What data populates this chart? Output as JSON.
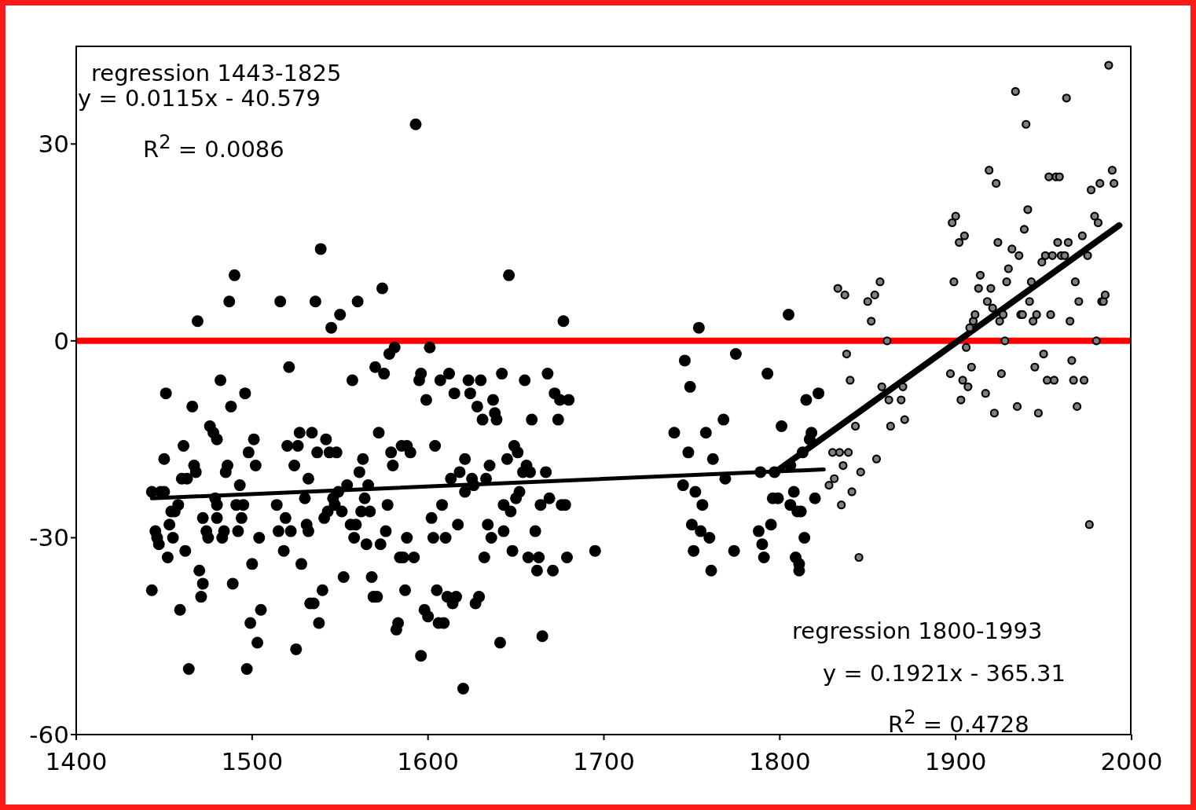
{
  "chart_data": {
    "type": "scatter",
    "marker": "circle",
    "xlim": [
      1400,
      2000
    ],
    "xticks": [
      1400,
      1500,
      1600,
      1700,
      1800,
      1900,
      2000
    ],
    "ylim": [
      -60,
      45
    ],
    "yticks": [
      -60,
      -30,
      0,
      30
    ],
    "ref_lines": [
      {
        "axis": "y",
        "value": 0,
        "color": "#ff0000"
      }
    ],
    "annotations": [
      "regression 1443-1825",
      "y = 0.0115x - 40.579",
      "R$^{2}$ = 0.0086",
      "regression 1800-1993",
      "y = 0.1921x - 365.31",
      "R$^{2}$ = 0.4728"
    ],
    "series": [
      {
        "color": "#000000",
        "x": [
          1443,
          1443,
          1445,
          1446,
          1447,
          1448,
          1450,
          1450,
          1451,
          1452,
          1453,
          1454,
          1455,
          1456,
          1458,
          1459,
          1460,
          1461,
          1462,
          1463,
          1464,
          1466,
          1467,
          1468,
          1469,
          1470,
          1471,
          1472,
          1472,
          1474,
          1475,
          1476,
          1478,
          1479,
          1480,
          1480,
          1480,
          1482,
          1483,
          1484,
          1485,
          1486,
          1487,
          1488,
          1489,
          1490,
          1491,
          1492,
          1493,
          1494,
          1495,
          1496,
          1497,
          1498,
          1499,
          1500,
          1501,
          1502,
          1503,
          1504,
          1505,
          1514,
          1515,
          1516,
          1518,
          1519,
          1520,
          1521,
          1522,
          1524,
          1525,
          1526,
          1527,
          1528,
          1530,
          1531,
          1532,
          1532,
          1533,
          1534,
          1535,
          1536,
          1537,
          1538,
          1539,
          1540,
          1541,
          1542,
          1543,
          1544,
          1545,
          1546,
          1547,
          1548,
          1549,
          1550,
          1551,
          1552,
          1554,
          1556,
          1557,
          1558,
          1559,
          1560,
          1561,
          1562,
          1563,
          1564,
          1565,
          1566,
          1567,
          1568,
          1569,
          1570,
          1571,
          1572,
          1573,
          1574,
          1575,
          1576,
          1577,
          1578,
          1579,
          1580,
          1581,
          1582,
          1583,
          1584,
          1585,
          1586,
          1587,
          1588,
          1588,
          1590,
          1592,
          1593,
          1595,
          1596,
          1596,
          1598,
          1599,
          1600,
          1601,
          1602,
          1603,
          1604,
          1605,
          1606,
          1607,
          1608,
          1609,
          1610,
          1611,
          1612,
          1613,
          1614,
          1615,
          1616,
          1617,
          1618,
          1620,
          1621,
          1621,
          1623,
          1624,
          1625,
          1626,
          1627,
          1628,
          1629,
          1630,
          1631,
          1632,
          1633,
          1634,
          1635,
          1636,
          1637,
          1638,
          1639,
          1641,
          1642,
          1643,
          1643,
          1645,
          1646,
          1647,
          1648,
          1649,
          1650,
          1651,
          1652,
          1654,
          1655,
          1656,
          1657,
          1658,
          1659,
          1661,
          1662,
          1663,
          1664,
          1665,
          1667,
          1668,
          1669,
          1671,
          1672,
          1674,
          1675,
          1676,
          1677,
          1678,
          1679,
          1680,
          1695,
          1740,
          1745,
          1746,
          1748,
          1749,
          1750,
          1751,
          1752,
          1754,
          1755,
          1756,
          1758,
          1760,
          1761,
          1762,
          1768,
          1769,
          1774,
          1775,
          1788,
          1789,
          1790,
          1791,
          1793,
          1795,
          1796,
          1797,
          1799,
          1801,
          1805,
          1806,
          1806,
          1808,
          1809,
          1810,
          1811,
          1811,
          1812,
          1813,
          1814,
          1815,
          1817,
          1818,
          1820,
          1822
        ],
        "values": [
          -38,
          -23,
          -29,
          -30,
          -31,
          -23,
          -18,
          -23,
          -8,
          -33,
          -28,
          -26,
          -30,
          -26,
          -25,
          -41,
          -21,
          -16,
          -32,
          -21,
          -50,
          -10,
          -19,
          -20,
          3,
          -35,
          -39,
          -37,
          -27,
          -29,
          -30,
          -13,
          -14,
          -24,
          -25,
          -15,
          -27,
          -6,
          -30,
          -29,
          -20,
          -19,
          6,
          -10,
          -37,
          10,
          -25,
          -29,
          -22,
          -27,
          -25,
          -8,
          -50,
          -17,
          -43,
          -34,
          -15,
          -19,
          -46,
          -30,
          -41,
          -25,
          -29,
          6,
          -32,
          -27,
          -16,
          -4,
          -29,
          -19,
          -47,
          -16,
          -14,
          -34,
          -24,
          -28,
          -29,
          -21,
          -40,
          -14,
          -40,
          6,
          -17,
          -43,
          14,
          -38,
          -27,
          -15,
          -26,
          -17,
          2,
          -24,
          -25,
          -17,
          -23,
          4,
          -26,
          -36,
          -22,
          -28,
          -6,
          -30,
          -28,
          6,
          -20,
          -26,
          -18,
          -24,
          -31,
          -22,
          -26,
          -36,
          -39,
          -4,
          -39,
          -14,
          -31,
          8,
          -5,
          -29,
          -25,
          -2,
          -17,
          -19,
          -1,
          -44,
          -43,
          -33,
          -16,
          -33,
          -38,
          -16,
          -30,
          -17,
          -33,
          33,
          -6,
          -5,
          -48,
          -41,
          -9,
          -42,
          -1,
          -27,
          -30,
          -16,
          -38,
          -43,
          -6,
          -25,
          -43,
          -30,
          -39,
          -5,
          -21,
          -40,
          -8,
          -39,
          -28,
          -20,
          -53,
          -23,
          -18,
          -6,
          -8,
          -21,
          -22,
          -40,
          -10,
          -39,
          -6,
          -12,
          -33,
          -21,
          -28,
          -19,
          -30,
          -9,
          -11,
          -12,
          -46,
          -5,
          -25,
          -29,
          -18,
          10,
          -26,
          -32,
          -16,
          -24,
          -17,
          -23,
          -20,
          -6,
          -19,
          -33,
          -20,
          -12,
          -29,
          -35,
          -33,
          -25,
          -45,
          -20,
          -5,
          -24,
          -35,
          -8,
          -12,
          -9,
          -25,
          3,
          -25,
          -33,
          -9,
          -32,
          -14,
          -22,
          -3,
          -17,
          -7,
          -28,
          -32,
          -23,
          2,
          -29,
          -25,
          -14,
          -30,
          -35,
          -18,
          -12,
          -21,
          -32,
          -2,
          -29,
          -20,
          -31,
          -33,
          -5,
          -28,
          -24,
          -20,
          -24,
          -13,
          4,
          -19,
          -25,
          -23,
          -33,
          -26,
          -34,
          -35,
          -26,
          -17,
          -30,
          -9,
          -15,
          -14,
          -24,
          -8
        ]
      },
      {
        "color": "#808080",
        "x": [
          1828,
          1830,
          1831,
          1833,
          1834,
          1835,
          1836,
          1837,
          1838,
          1839,
          1840,
          1841,
          1843,
          1845,
          1846,
          1850,
          1852,
          1854,
          1855,
          1857,
          1858,
          1861,
          1862,
          1863,
          1869,
          1870,
          1871,
          1897,
          1898,
          1899,
          1900,
          1902,
          1903,
          1904,
          1905,
          1906,
          1907,
          1908,
          1909,
          1910,
          1911,
          1913,
          1914,
          1917,
          1918,
          1919,
          1920,
          1921,
          1922,
          1923,
          1924,
          1925,
          1926,
          1927,
          1928,
          1929,
          1930,
          1932,
          1934,
          1935,
          1936,
          1937,
          1938,
          1939,
          1940,
          1941,
          1942,
          1943,
          1944,
          1945,
          1946,
          1947,
          1949,
          1950,
          1951,
          1952,
          1953,
          1954,
          1955,
          1956,
          1957,
          1958,
          1959,
          1960,
          1962,
          1963,
          1964,
          1965,
          1966,
          1967,
          1968,
          1969,
          1970,
          1972,
          1973,
          1975,
          1976,
          1977,
          1979,
          1980,
          1981,
          1982,
          1983,
          1984,
          1985,
          1987,
          1989,
          1990
        ],
        "values": [
          -22,
          -17,
          -21,
          8,
          -17,
          -25,
          -19,
          7,
          -2,
          -17,
          -6,
          -23,
          -13,
          -33,
          -20,
          6,
          3,
          7,
          -18,
          9,
          -7,
          0,
          -9,
          -13,
          -9,
          -7,
          -12,
          -5,
          18,
          9,
          19,
          15,
          -9,
          -6,
          16,
          -1,
          -7,
          2,
          -4,
          3,
          4,
          8,
          10,
          -8,
          6,
          26,
          8,
          5,
          -11,
          24,
          15,
          3,
          -5,
          4,
          0,
          9,
          11,
          14,
          38,
          -10,
          13,
          4,
          4,
          17,
          33,
          20,
          6,
          9,
          3,
          -4,
          4,
          -11,
          12,
          -2,
          13,
          -6,
          25,
          4,
          13,
          -6,
          25,
          15,
          25,
          13,
          13,
          37,
          15,
          3,
          -3,
          -6,
          9,
          -10,
          6,
          16,
          -6,
          13,
          -28,
          23,
          19,
          0,
          18,
          24,
          6,
          6,
          7,
          42,
          26,
          24
        ]
      },
      {
        "type": "line",
        "marker": "none",
        "color": "#000000",
        "x": [
          1443,
          1825
        ],
        "values": [
          -24.0,
          -19.6
        ]
      },
      {
        "type": "line",
        "marker": "none",
        "color": "#000000",
        "x": [
          1800,
          1993
        ],
        "values": [
          -19.5,
          17.6
        ]
      }
    ]
  }
}
